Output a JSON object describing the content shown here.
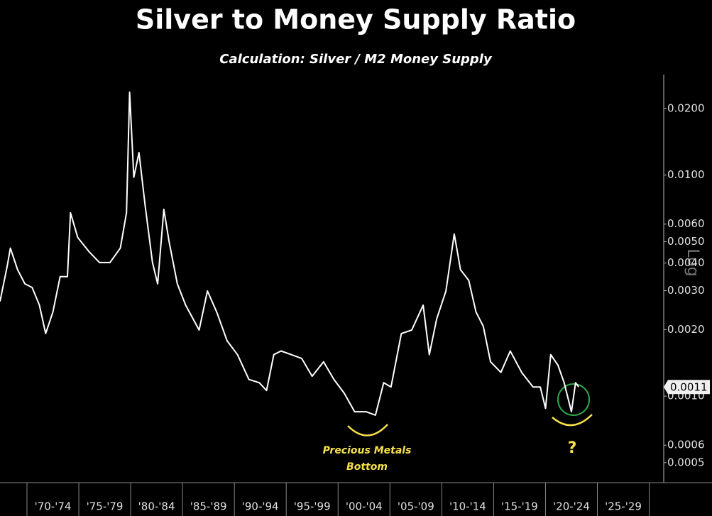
{
  "chart_data": {
    "type": "line",
    "title": "Silver to Money Supply Ratio",
    "subtitle": "Calculation: Silver / M2 Money Supply",
    "log_y": true,
    "color": "#ffffff",
    "x": [
      1967.4,
      1968.1,
      1968.4,
      1969.1,
      1969.8,
      1970.5,
      1971.2,
      1971.8,
      1972.5,
      1973.2,
      1973.9,
      1974.2,
      1974.9,
      1976.0,
      1977.0,
      1978.0,
      1979.0,
      1979.6,
      1979.9,
      1980.3,
      1980.8,
      1981.4,
      1982.1,
      1982.6,
      1983.2,
      1983.7,
      1984.5,
      1985.3,
      1986.6,
      1987.4,
      1988.3,
      1989.3,
      1990.3,
      1991.4,
      1992.4,
      1993.1,
      1993.8,
      1994.5,
      1995.5,
      1996.5,
      1997.5,
      1998.6,
      1999.6,
      2000.6,
      2001.6,
      2002.7,
      2003.6,
      2004.4,
      2005.1,
      2006.1,
      2007.1,
      2008.2,
      2008.8,
      2009.5,
      2010.4,
      2011.2,
      2011.8,
      2012.6,
      2013.3,
      2014.0,
      2014.7,
      2015.7,
      2016.6,
      2017.7,
      2018.8,
      2019.5,
      2020.0,
      2020.5,
      2021.2,
      2021.8,
      2022.5,
      2022.9,
      2023.2
    ],
    "values": [
      0.00268,
      0.00388,
      0.00467,
      0.00373,
      0.00322,
      0.0031,
      0.00258,
      0.00192,
      0.0024,
      0.00347,
      0.00347,
      0.00675,
      0.00521,
      0.0045,
      0.00402,
      0.00402,
      0.00467,
      0.00675,
      0.0237,
      0.00977,
      0.01264,
      0.00726,
      0.00402,
      0.00322,
      0.007,
      0.00502,
      0.00322,
      0.00258,
      0.00199,
      0.00299,
      0.0024,
      0.00178,
      0.00154,
      0.00119,
      0.00115,
      0.00106,
      0.00154,
      0.0016,
      0.00154,
      0.00148,
      0.00123,
      0.00143,
      0.00119,
      0.00103,
      0.00085,
      0.00085,
      0.00082,
      0.00115,
      0.0011,
      0.00192,
      0.00199,
      0.00258,
      0.00154,
      0.00223,
      0.00299,
      0.00541,
      0.00373,
      0.00334,
      0.0024,
      0.00207,
      0.00143,
      0.00128,
      0.0016,
      0.00128,
      0.0011,
      0.0011,
      0.00088,
      0.00154,
      0.00138,
      0.00115,
      0.00085,
      0.00115,
      0.0011
    ],
    "xlim": [
      1967.4,
      2031.4
    ],
    "ylim": [
      0.000406,
      0.0285
    ],
    "xticks": [
      {
        "value": 1972.5,
        "label": "'70-'74"
      },
      {
        "value": 1977.5,
        "label": "'75-'79"
      },
      {
        "value": 1982.5,
        "label": "'80-'84"
      },
      {
        "value": 1987.5,
        "label": "'85-'89"
      },
      {
        "value": 1992.5,
        "label": "'90-'94"
      },
      {
        "value": 1997.5,
        "label": "'95-'99"
      },
      {
        "value": 2002.5,
        "label": "'00-'04"
      },
      {
        "value": 2007.5,
        "label": "'05-'09"
      },
      {
        "value": 2012.5,
        "label": "'10-'14"
      },
      {
        "value": 2017.5,
        "label": "'15-'19"
      },
      {
        "value": 2022.5,
        "label": "'20-'24"
      },
      {
        "value": 2027.5,
        "label": "'25-'29"
      }
    ],
    "yticks": [
      {
        "value": 0.02,
        "label": "0.0200"
      },
      {
        "value": 0.01,
        "label": "0.0100"
      },
      {
        "value": 0.006,
        "label": "0.0060"
      },
      {
        "value": 0.005,
        "label": "0.0050"
      },
      {
        "value": 0.004,
        "label": "0.0040"
      },
      {
        "value": 0.003,
        "label": "0.0030"
      },
      {
        "value": 0.002,
        "label": "0.0020"
      },
      {
        "value": 0.001,
        "label": "0.0010"
      },
      {
        "value": 0.0006,
        "label": "0.0006"
      },
      {
        "value": 0.0005,
        "label": "0.0005"
      }
    ],
    "last_value": 0.0011,
    "scale_label": "Log",
    "annotations": [
      "Precious Metals",
      "Bottom",
      "?"
    ]
  }
}
